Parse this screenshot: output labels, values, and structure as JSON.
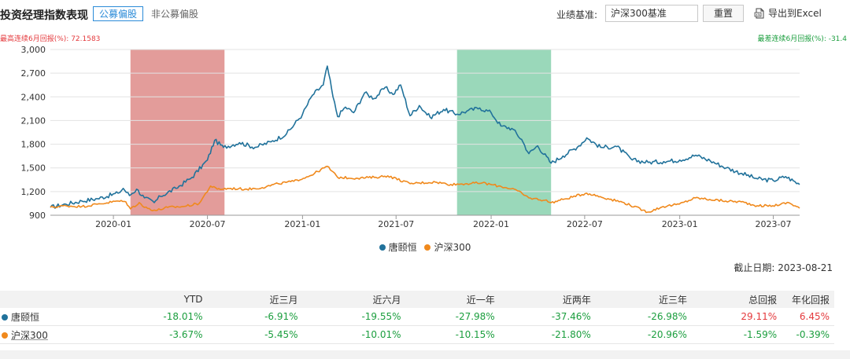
{
  "header": {
    "title": "投资经理指数表现",
    "tab_active": "公募偏股",
    "tab_inactive": "非公募偏股",
    "benchmark_label": "业绩基准:",
    "benchmark_value": "沪深300基准",
    "reset_label": "重置",
    "export_label": "导出到Excel"
  },
  "annotations": {
    "best": "最高连续6月回报(%): 72.1583",
    "worst": "最差连续6月回报(%): -31.4"
  },
  "cutoff": "截止日期: 2023-08-21",
  "colors": {
    "series1": "#21729b",
    "series2": "#f0891c",
    "best_band": "#d97b78",
    "worst_band": "#6fc79c",
    "positive": "#e4393c",
    "negative": "#1b9e3e"
  },
  "chart_data": {
    "type": "line",
    "ylim": [
      900,
      3000
    ],
    "yticks": [
      "900",
      "1,200",
      "1,500",
      "1,800",
      "2,100",
      "2,400",
      "2,700",
      "3,000"
    ],
    "xticks": [
      "2020-01",
      "2020-07",
      "2021-01",
      "2021-07",
      "2022-01",
      "2022-07",
      "2023-01",
      "2023-07"
    ],
    "xrange": [
      "2019-09-01",
      "2023-08-21"
    ],
    "highlights": [
      {
        "type": "best",
        "start": "2020-02-03",
        "end": "2020-08-03"
      },
      {
        "type": "worst",
        "start": "2021-10-27",
        "end": "2022-04-27"
      }
    ],
    "series": [
      {
        "name": "唐颐恒",
        "points": [
          [
            "2019-09-01",
            1000
          ],
          [
            "2019-10-01",
            1040
          ],
          [
            "2019-11-01",
            1080
          ],
          [
            "2019-12-01",
            1110
          ],
          [
            "2020-01-10",
            1180
          ],
          [
            "2020-01-20",
            1240
          ],
          [
            "2020-02-01",
            1150
          ],
          [
            "2020-02-15",
            1230
          ],
          [
            "2020-03-01",
            1120
          ],
          [
            "2020-03-20",
            1060
          ],
          [
            "2020-04-01",
            1140
          ],
          [
            "2020-05-01",
            1240
          ],
          [
            "2020-06-01",
            1380
          ],
          [
            "2020-07-01",
            1600
          ],
          [
            "2020-07-15",
            1850
          ],
          [
            "2020-08-01",
            1760
          ],
          [
            "2020-09-01",
            1820
          ],
          [
            "2020-10-01",
            1760
          ],
          [
            "2020-11-01",
            1830
          ],
          [
            "2020-12-01",
            1930
          ],
          [
            "2021-01-01",
            2180
          ],
          [
            "2021-01-20",
            2420
          ],
          [
            "2021-02-10",
            2550
          ],
          [
            "2021-02-18",
            2790
          ],
          [
            "2021-03-01",
            2400
          ],
          [
            "2021-03-10",
            2150
          ],
          [
            "2021-03-25",
            2270
          ],
          [
            "2021-04-10",
            2200
          ],
          [
            "2021-05-01",
            2450
          ],
          [
            "2021-05-20",
            2380
          ],
          [
            "2021-06-10",
            2520
          ],
          [
            "2021-06-25",
            2430
          ],
          [
            "2021-07-10",
            2550
          ],
          [
            "2021-07-28",
            2160
          ],
          [
            "2021-08-15",
            2290
          ],
          [
            "2021-09-05",
            2140
          ],
          [
            "2021-10-01",
            2240
          ],
          [
            "2021-10-27",
            2180
          ],
          [
            "2021-11-15",
            2220
          ],
          [
            "2021-12-10",
            2260
          ],
          [
            "2022-01-01",
            2200
          ],
          [
            "2022-01-20",
            2030
          ],
          [
            "2022-02-10",
            2000
          ],
          [
            "2022-03-01",
            1860
          ],
          [
            "2022-03-15",
            1680
          ],
          [
            "2022-04-01",
            1780
          ],
          [
            "2022-04-27",
            1560
          ],
          [
            "2022-05-20",
            1650
          ],
          [
            "2022-06-20",
            1780
          ],
          [
            "2022-07-05",
            1880
          ],
          [
            "2022-08-01",
            1760
          ],
          [
            "2022-09-01",
            1770
          ],
          [
            "2022-10-01",
            1600
          ],
          [
            "2022-11-01",
            1570
          ],
          [
            "2022-12-01",
            1580
          ],
          [
            "2023-01-01",
            1600
          ],
          [
            "2023-02-01",
            1660
          ],
          [
            "2023-03-01",
            1590
          ],
          [
            "2023-04-01",
            1500
          ],
          [
            "2023-05-01",
            1430
          ],
          [
            "2023-06-01",
            1360
          ],
          [
            "2023-07-01",
            1340
          ],
          [
            "2023-07-25",
            1390
          ],
          [
            "2023-08-21",
            1290
          ]
        ]
      },
      {
        "name": "沪深300",
        "points": [
          [
            "2019-09-01",
            1000
          ],
          [
            "2019-10-01",
            1020
          ],
          [
            "2019-11-01",
            1010
          ],
          [
            "2019-12-01",
            1040
          ],
          [
            "2020-01-10",
            1080
          ],
          [
            "2020-01-25",
            1070
          ],
          [
            "2020-02-03",
            980
          ],
          [
            "2020-02-20",
            1060
          ],
          [
            "2020-03-01",
            1000
          ],
          [
            "2020-03-23",
            960
          ],
          [
            "2020-04-15",
            1000
          ],
          [
            "2020-05-15",
            1010
          ],
          [
            "2020-06-15",
            1050
          ],
          [
            "2020-07-07",
            1270
          ],
          [
            "2020-07-20",
            1230
          ],
          [
            "2020-08-15",
            1240
          ],
          [
            "2020-09-15",
            1230
          ],
          [
            "2020-10-15",
            1250
          ],
          [
            "2020-11-15",
            1300
          ],
          [
            "2020-12-15",
            1330
          ],
          [
            "2021-01-15",
            1400
          ],
          [
            "2021-02-18",
            1520
          ],
          [
            "2021-03-10",
            1380
          ],
          [
            "2021-04-15",
            1370
          ],
          [
            "2021-05-20",
            1380
          ],
          [
            "2021-06-15",
            1400
          ],
          [
            "2021-07-28",
            1300
          ],
          [
            "2021-08-15",
            1310
          ],
          [
            "2021-09-15",
            1320
          ],
          [
            "2021-10-15",
            1290
          ],
          [
            "2021-11-15",
            1300
          ],
          [
            "2021-12-15",
            1310
          ],
          [
            "2022-01-15",
            1270
          ],
          [
            "2022-02-15",
            1230
          ],
          [
            "2022-03-15",
            1120
          ],
          [
            "2022-04-15",
            1090
          ],
          [
            "2022-04-27",
            1060
          ],
          [
            "2022-05-20",
            1100
          ],
          [
            "2022-07-05",
            1180
          ],
          [
            "2022-08-15",
            1110
          ],
          [
            "2022-09-15",
            1060
          ],
          [
            "2022-10-31",
            940
          ],
          [
            "2022-11-30",
            1010
          ],
          [
            "2022-12-31",
            1040
          ],
          [
            "2023-01-31",
            1120
          ],
          [
            "2023-02-28",
            1100
          ],
          [
            "2023-03-31",
            1080
          ],
          [
            "2023-04-30",
            1070
          ],
          [
            "2023-05-31",
            1020
          ],
          [
            "2023-06-30",
            1020
          ],
          [
            "2023-07-31",
            1060
          ],
          [
            "2023-08-21",
            990
          ]
        ]
      }
    ]
  },
  "table": {
    "headers": [
      "YTD",
      "近三月",
      "近六月",
      "近一年",
      "近两年",
      "近三年",
      "总回报",
      "年化回报"
    ],
    "rows": [
      {
        "name": "唐颐恒",
        "values": [
          "-18.01%",
          "-6.91%",
          "-19.55%",
          "-27.98%",
          "-37.46%",
          "-26.98%",
          "29.11%",
          "6.45%"
        ],
        "signs": [
          "neg",
          "neg",
          "neg",
          "neg",
          "neg",
          "neg",
          "pos",
          "pos"
        ]
      },
      {
        "name": "沪深300",
        "values": [
          "-3.67%",
          "-5.45%",
          "-10.01%",
          "-10.15%",
          "-21.80%",
          "-20.96%",
          "-1.59%",
          "-0.39%"
        ],
        "signs": [
          "neg",
          "neg",
          "neg",
          "neg",
          "neg",
          "neg",
          "neg",
          "neg"
        ]
      }
    ]
  }
}
